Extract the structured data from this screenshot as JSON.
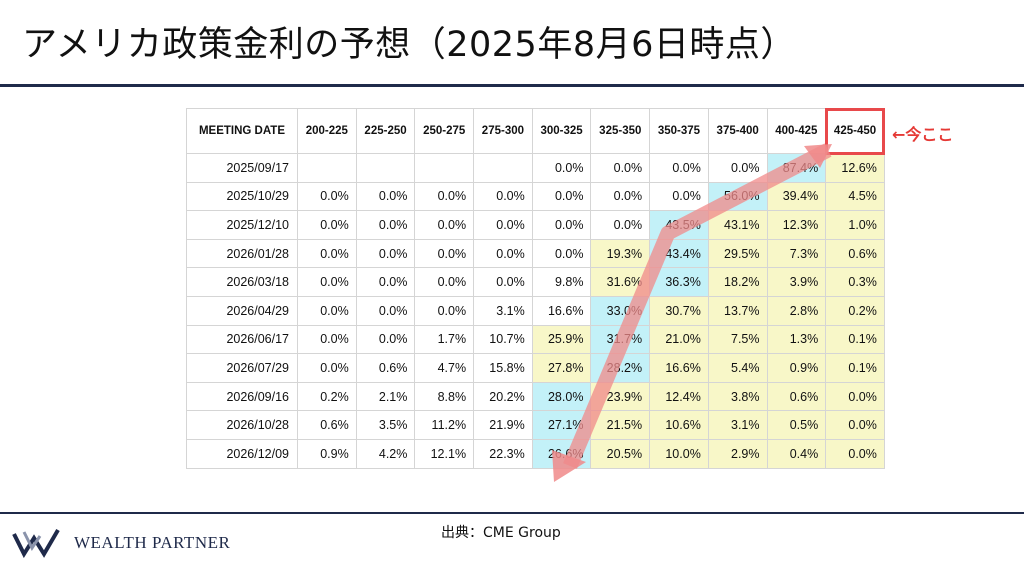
{
  "title": "アメリカ政策金利の予想（2025年8月6日時点）",
  "annotation": "←今ここ",
  "source": "出典：CME Group",
  "logo": {
    "text": "WEALTH PARTNER"
  },
  "colors": {
    "accent_red": "#e8494b",
    "yellow": "#f8f7c8",
    "cyan": "#c3f1f8",
    "navy": "#1f2a4a"
  },
  "chart_data": {
    "type": "table",
    "header_first": "MEETING DATE",
    "columns": [
      "200-225",
      "225-250",
      "250-275",
      "275-300",
      "300-325",
      "325-350",
      "350-375",
      "375-400",
      "400-425",
      "425-450"
    ],
    "highlight_column": "425-450",
    "rows": [
      {
        "date": "2025/09/17",
        "values": [
          "",
          "",
          "",
          "",
          "0.0%",
          "0.0%",
          "0.0%",
          "0.0%",
          "87.4%",
          "12.6%"
        ]
      },
      {
        "date": "2025/10/29",
        "values": [
          "0.0%",
          "0.0%",
          "0.0%",
          "0.0%",
          "0.0%",
          "0.0%",
          "0.0%",
          "56.0%",
          "39.4%",
          "4.5%"
        ]
      },
      {
        "date": "2025/12/10",
        "values": [
          "0.0%",
          "0.0%",
          "0.0%",
          "0.0%",
          "0.0%",
          "0.0%",
          "43.5%",
          "43.1%",
          "12.3%",
          "1.0%"
        ]
      },
      {
        "date": "2026/01/28",
        "values": [
          "0.0%",
          "0.0%",
          "0.0%",
          "0.0%",
          "0.0%",
          "19.3%",
          "43.4%",
          "29.5%",
          "7.3%",
          "0.6%"
        ]
      },
      {
        "date": "2026/03/18",
        "values": [
          "0.0%",
          "0.0%",
          "0.0%",
          "0.0%",
          "9.8%",
          "31.6%",
          "36.3%",
          "18.2%",
          "3.9%",
          "0.3%"
        ]
      },
      {
        "date": "2026/04/29",
        "values": [
          "0.0%",
          "0.0%",
          "0.0%",
          "3.1%",
          "16.6%",
          "33.0%",
          "30.7%",
          "13.7%",
          "2.8%",
          "0.2%"
        ]
      },
      {
        "date": "2026/06/17",
        "values": [
          "0.0%",
          "0.0%",
          "1.7%",
          "10.7%",
          "25.9%",
          "31.7%",
          "21.0%",
          "7.5%",
          "1.3%",
          "0.1%"
        ]
      },
      {
        "date": "2026/07/29",
        "values": [
          "0.0%",
          "0.6%",
          "4.7%",
          "15.8%",
          "27.8%",
          "28.2%",
          "16.6%",
          "5.4%",
          "0.9%",
          "0.1%"
        ]
      },
      {
        "date": "2026/09/16",
        "values": [
          "0.2%",
          "2.1%",
          "8.8%",
          "20.2%",
          "28.0%",
          "23.9%",
          "12.4%",
          "3.8%",
          "0.6%",
          "0.0%"
        ]
      },
      {
        "date": "2026/10/28",
        "values": [
          "0.6%",
          "3.5%",
          "11.2%",
          "21.9%",
          "27.1%",
          "21.5%",
          "10.6%",
          "3.1%",
          "0.5%",
          "0.0%"
        ]
      },
      {
        "date": "2026/12/09",
        "values": [
          "0.9%",
          "4.2%",
          "12.1%",
          "22.3%",
          "26.6%",
          "20.5%",
          "10.0%",
          "2.9%",
          "0.4%",
          "0.0%"
        ]
      }
    ],
    "cell_colors": [
      [
        "w",
        "w",
        "w",
        "w",
        "w",
        "w",
        "w",
        "w",
        "c",
        "y"
      ],
      [
        "w",
        "w",
        "w",
        "w",
        "w",
        "w",
        "w",
        "c",
        "y",
        "y"
      ],
      [
        "w",
        "w",
        "w",
        "w",
        "w",
        "w",
        "c",
        "y",
        "y",
        "y"
      ],
      [
        "w",
        "w",
        "w",
        "w",
        "w",
        "y",
        "c",
        "y",
        "y",
        "y"
      ],
      [
        "w",
        "w",
        "w",
        "w",
        "w",
        "y",
        "c",
        "y",
        "y",
        "y"
      ],
      [
        "w",
        "w",
        "w",
        "w",
        "w",
        "c",
        "y",
        "y",
        "y",
        "y"
      ],
      [
        "w",
        "w",
        "w",
        "w",
        "y",
        "c",
        "y",
        "y",
        "y",
        "y"
      ],
      [
        "w",
        "w",
        "w",
        "w",
        "y",
        "c",
        "y",
        "y",
        "y",
        "y"
      ],
      [
        "w",
        "w",
        "w",
        "w",
        "c",
        "y",
        "y",
        "y",
        "y",
        "y"
      ],
      [
        "w",
        "w",
        "w",
        "w",
        "c",
        "y",
        "y",
        "y",
        "y",
        "y"
      ],
      [
        "w",
        "w",
        "w",
        "w",
        "c",
        "y",
        "y",
        "y",
        "y",
        "y"
      ]
    ]
  }
}
